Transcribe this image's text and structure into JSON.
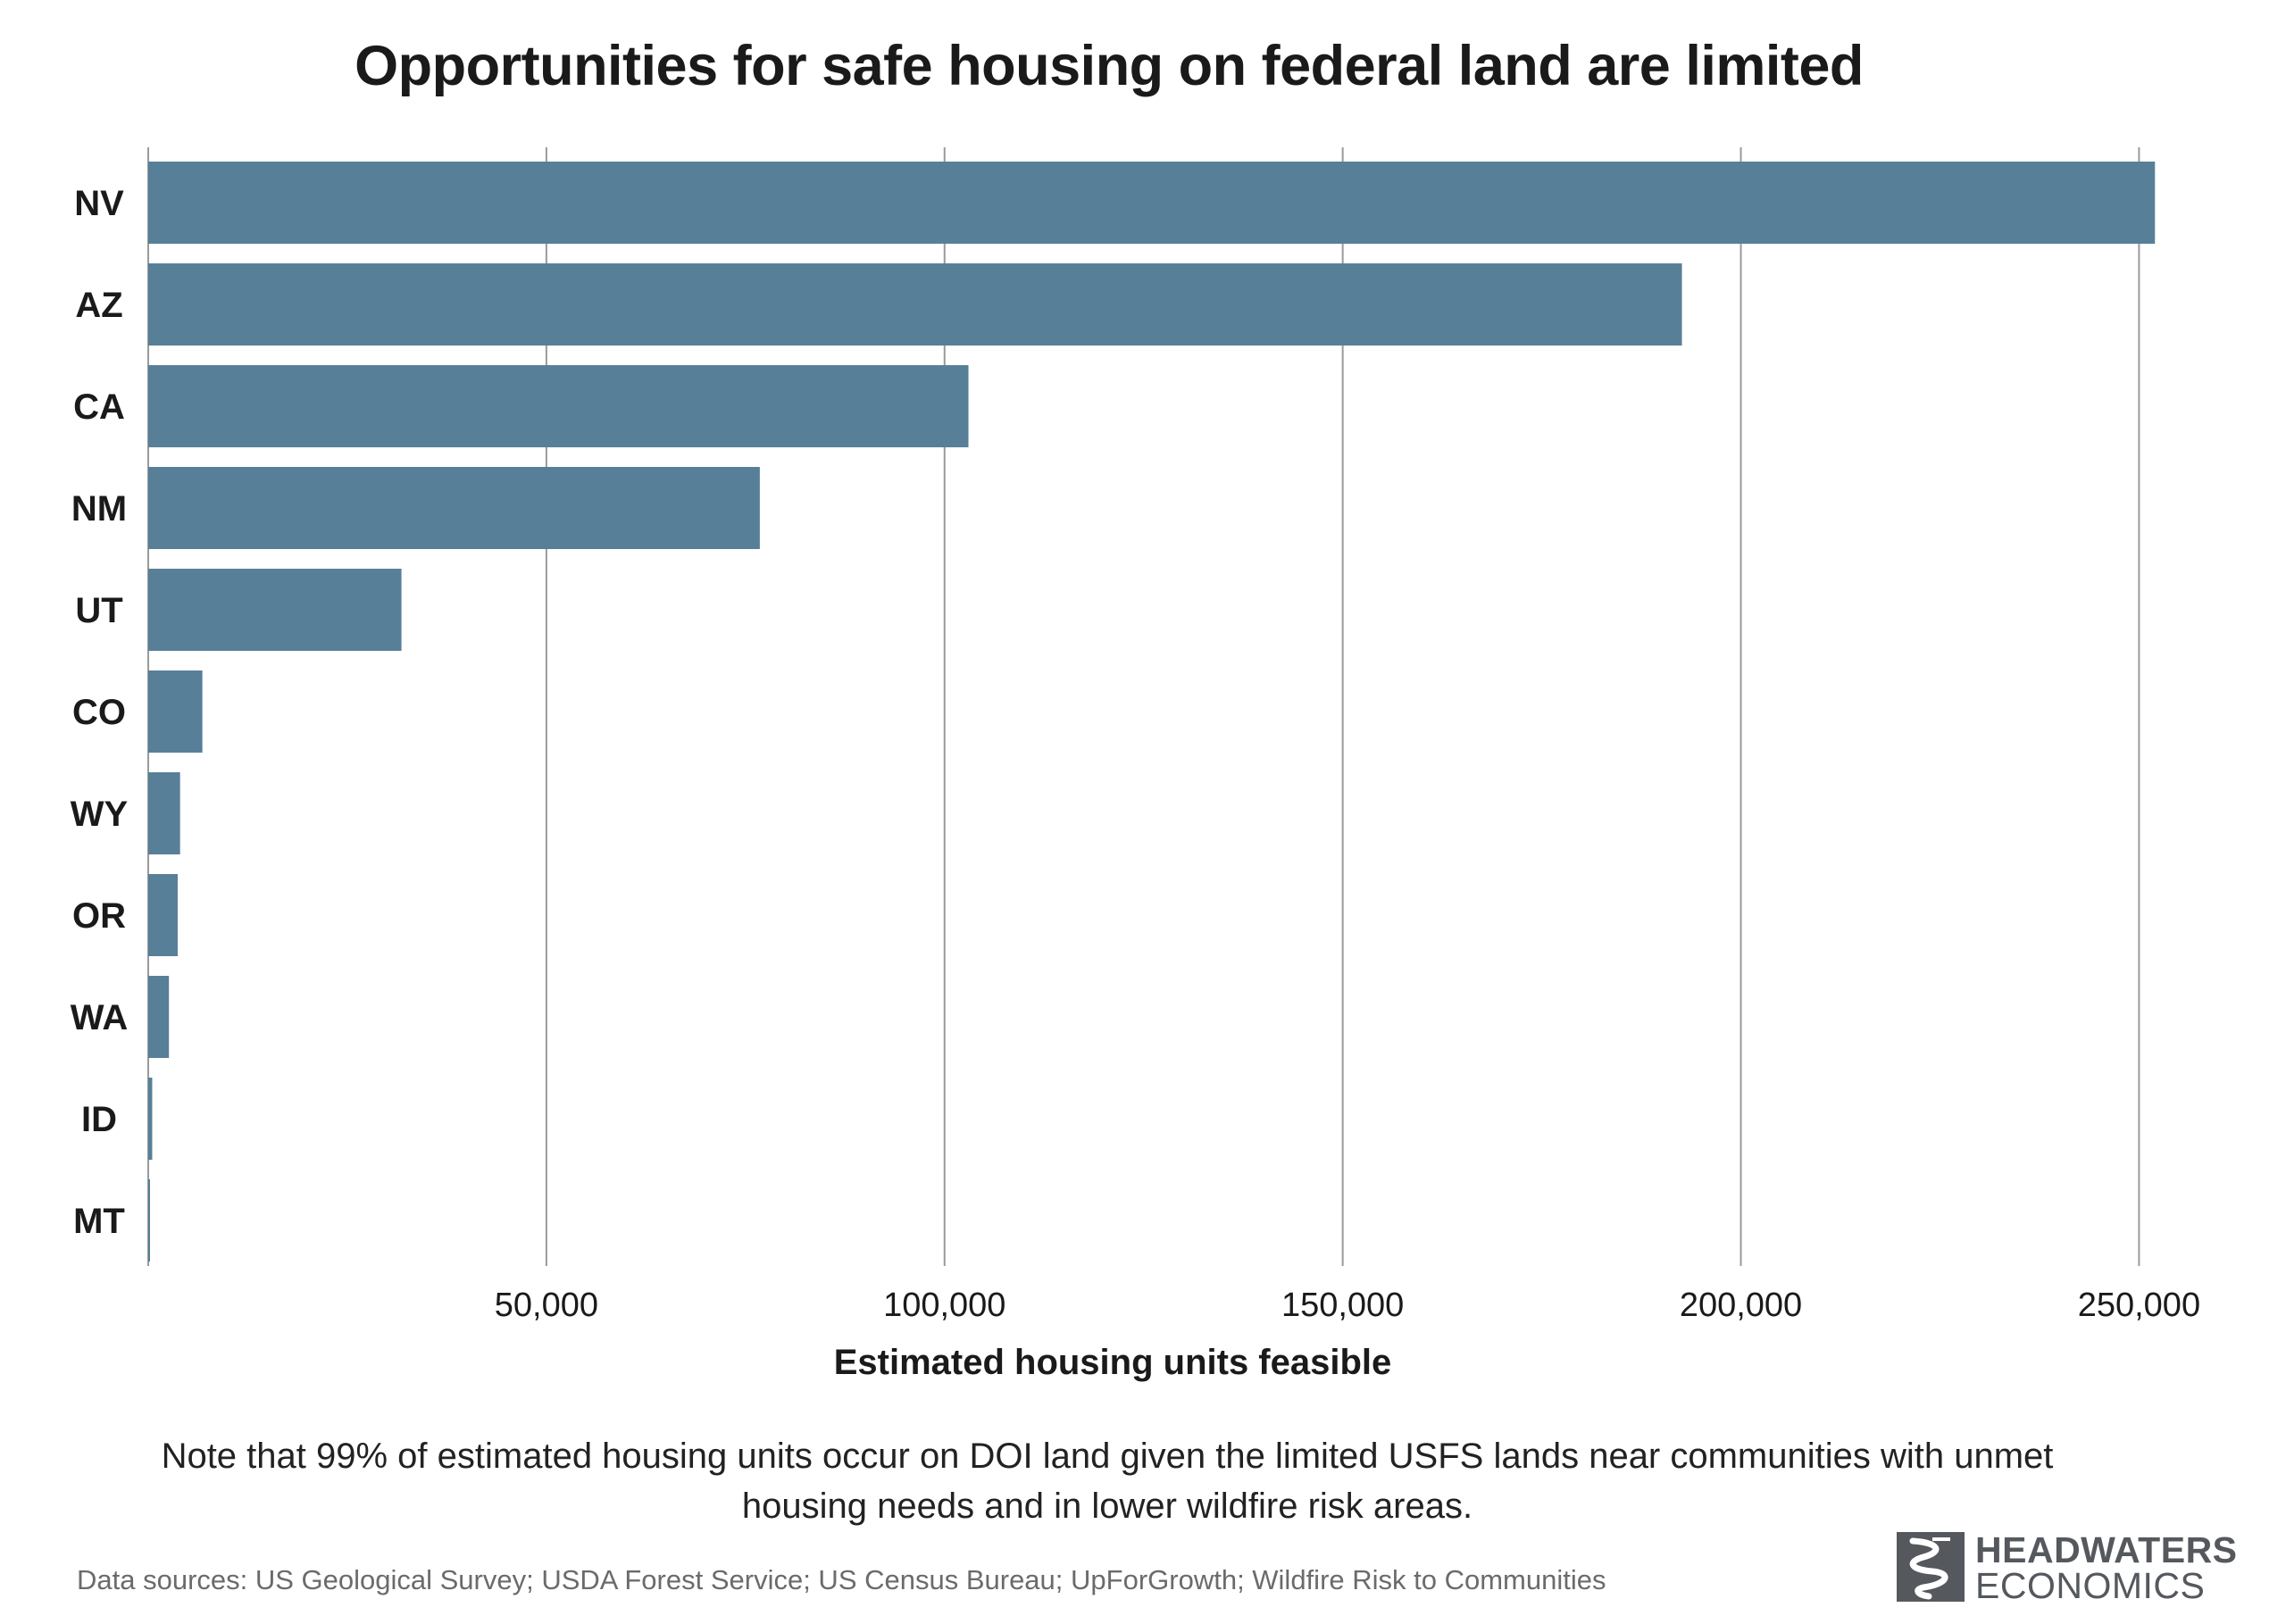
{
  "chart_data": {
    "type": "bar",
    "orientation": "horizontal",
    "title": "Opportunities for safe housing on federal land are limited",
    "xlabel": "Estimated housing units feasible",
    "categories": [
      "NV",
      "AZ",
      "CA",
      "NM",
      "UT",
      "CO",
      "WY",
      "OR",
      "WA",
      "ID",
      "MT"
    ],
    "values": [
      252000,
      192600,
      103000,
      76800,
      31800,
      6800,
      4000,
      3700,
      2600,
      500,
      200
    ],
    "xlim": [
      0,
      255000
    ],
    "xticks": [
      50000,
      100000,
      150000,
      200000,
      250000
    ],
    "xtick_labels": [
      "50,000",
      "100,000",
      "150,000",
      "200,000",
      "250,000"
    ],
    "grid": "vertical",
    "bar_color": "#587f98"
  },
  "note": "Note that 99% of estimated housing units occur on DOI land given the limited USFS lands near communities with unmet housing needs and in lower wildfire risk areas.",
  "source": "Data sources: US Geological Survey; USDA Forest Service; US Census Bureau; UpForGrowth; Wildfire Risk to Communities",
  "logo": {
    "line1": "HEADWATERS",
    "line2": "ECONOMICS",
    "icon": "headwaters-river-logo-icon"
  }
}
